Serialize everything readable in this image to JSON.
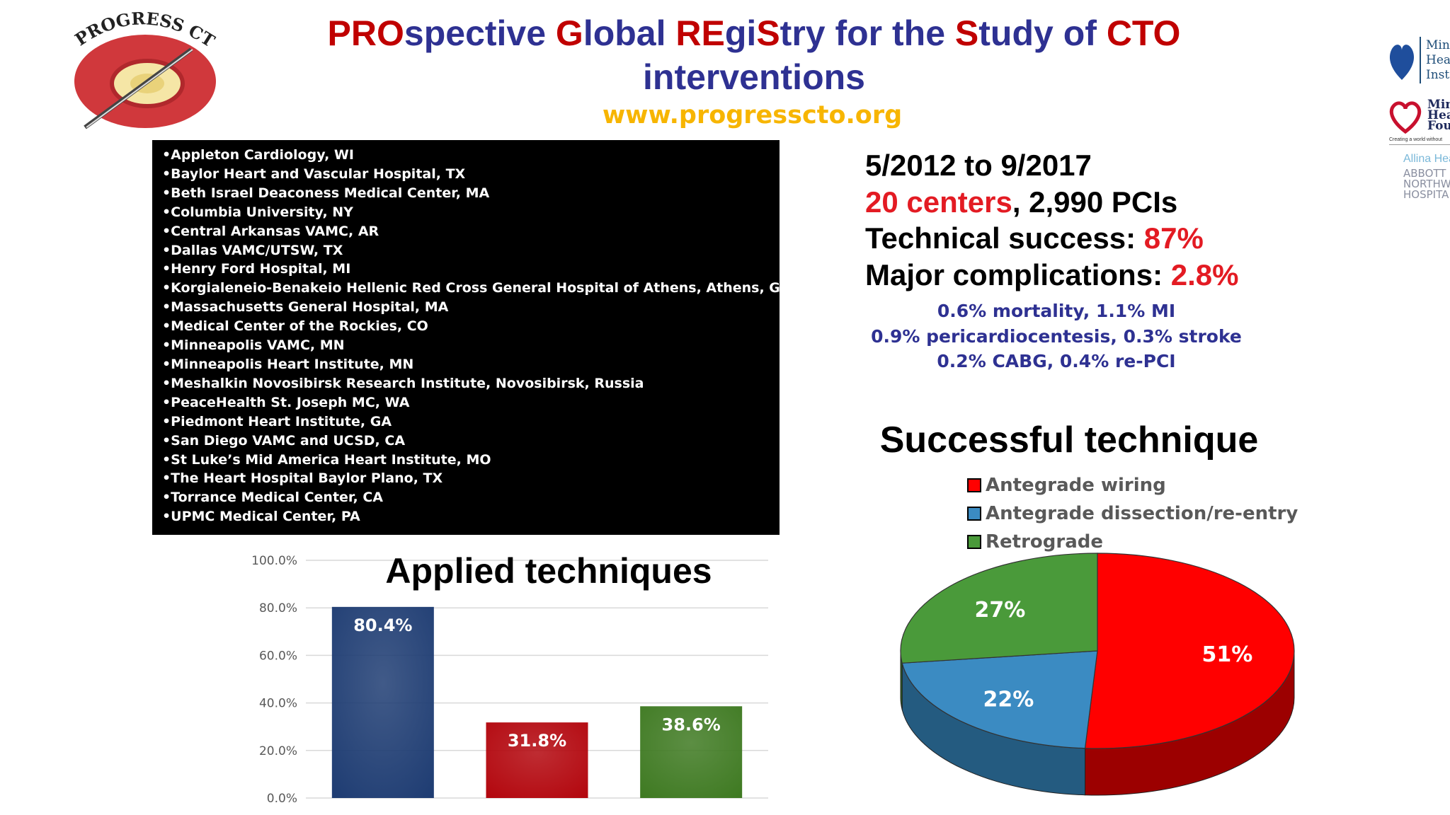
{
  "title": {
    "line1": [
      {
        "t": "PRO",
        "red": true
      },
      {
        "t": "spective ",
        "red": false
      },
      {
        "t": "G",
        "red": true
      },
      {
        "t": "lobal ",
        "red": false
      },
      {
        "t": "RE",
        "red": true
      },
      {
        "t": "gi",
        "red": false
      },
      {
        "t": "S",
        "red": true
      },
      {
        "t": "try for the ",
        "red": false
      },
      {
        "t": "S",
        "red": true
      },
      {
        "t": "tudy of ",
        "red": false
      },
      {
        "t": "CTO",
        "red": true
      }
    ],
    "line2": "interventions"
  },
  "url": "www.progresscto.org",
  "logo_left": {
    "text": "PROGRESS CTO",
    "colors": {
      "ring": "#d0383c",
      "core": "#f5e6a6"
    }
  },
  "logos_right": {
    "minneapolis_institute": [
      "Min",
      "Hea",
      "Inst"
    ],
    "foundation": [
      "Min",
      "Hea",
      "Fou"
    ],
    "foundation_tagline": "Creating a world without",
    "allina": "Allina Hea",
    "abbott": [
      "ABBOTT",
      "NORTHW",
      "HOSPITA"
    ]
  },
  "centers": [
    "•Appleton Cardiology, WI",
    "•Baylor Heart and Vascular Hospital, TX",
    "•Beth Israel Deaconess Medical Center, MA",
    "•Columbia University, NY",
    "•Central Arkansas VAMC, AR",
    "•Dallas VAMC/UTSW, TX",
    "•Henry Ford Hospital, MI",
    "•Korgialeneio-Benakeio Hellenic Red Cross General Hospital of Athens, Athens, Greece",
    "•Massachusetts General Hospital, MA",
    "•Medical Center of the Rockies, CO",
    "•Minneapolis VAMC, MN",
    "•Minneapolis Heart Institute, MN",
    "•Meshalkin Novosibirsk Research Institute, Novosibirsk, Russia",
    "•PeaceHealth St. Joseph MC, WA",
    "•Piedmont Heart Institute, GA",
    "•San Diego VAMC and UCSD, CA",
    "•St Luke’s Mid America Heart Institute, MO",
    "•The Heart Hospital Baylor Plano, TX",
    "•Torrance Medical Center, CA",
    "•UPMC Medical Center, PA"
  ],
  "stats": {
    "period": "5/2012 to 9/2017",
    "centers_red": "20 centers",
    "pcis": ", 2,990 PCIs",
    "tech_label": "Technical success: ",
    "tech_value": "87%",
    "comp_label": "Major complications: ",
    "comp_value": "2.8%",
    "sub_lines": [
      "0.6% mortality, 1.1% MI",
      "0.9% pericardiocentesis, 0.3% stroke",
      "0.2% CABG, 0.4% re-PCI"
    ]
  },
  "chart_data": [
    {
      "type": "bar",
      "title": "Applied techniques",
      "categories": [
        "",
        "",
        ""
      ],
      "values": [
        80.4,
        31.8,
        38.6
      ],
      "labels": [
        "80.4%",
        "31.8%",
        "38.6%"
      ],
      "colors": [
        "#1f3d73",
        "#b3070e",
        "#3f7a22"
      ],
      "yticks": [
        "0.0%",
        "20.0%",
        "40.0%",
        "60.0%",
        "80.0%",
        "100.0%"
      ],
      "ylim": [
        0,
        100
      ],
      "grid": true
    },
    {
      "type": "pie",
      "title": "Successful technique",
      "labels": [
        "Antegrade wiring",
        "Antegrade dissection/re-entry",
        "Retrograde"
      ],
      "values": [
        51,
        22,
        27
      ],
      "value_labels": [
        "51%",
        "22%",
        "27%"
      ],
      "colors": [
        "#ff0000",
        "#3b8bc2",
        "#4a9a3a"
      ],
      "side_colors": [
        "#9c0000",
        "#245b80",
        "#2d6324"
      ],
      "legend": "top"
    }
  ]
}
